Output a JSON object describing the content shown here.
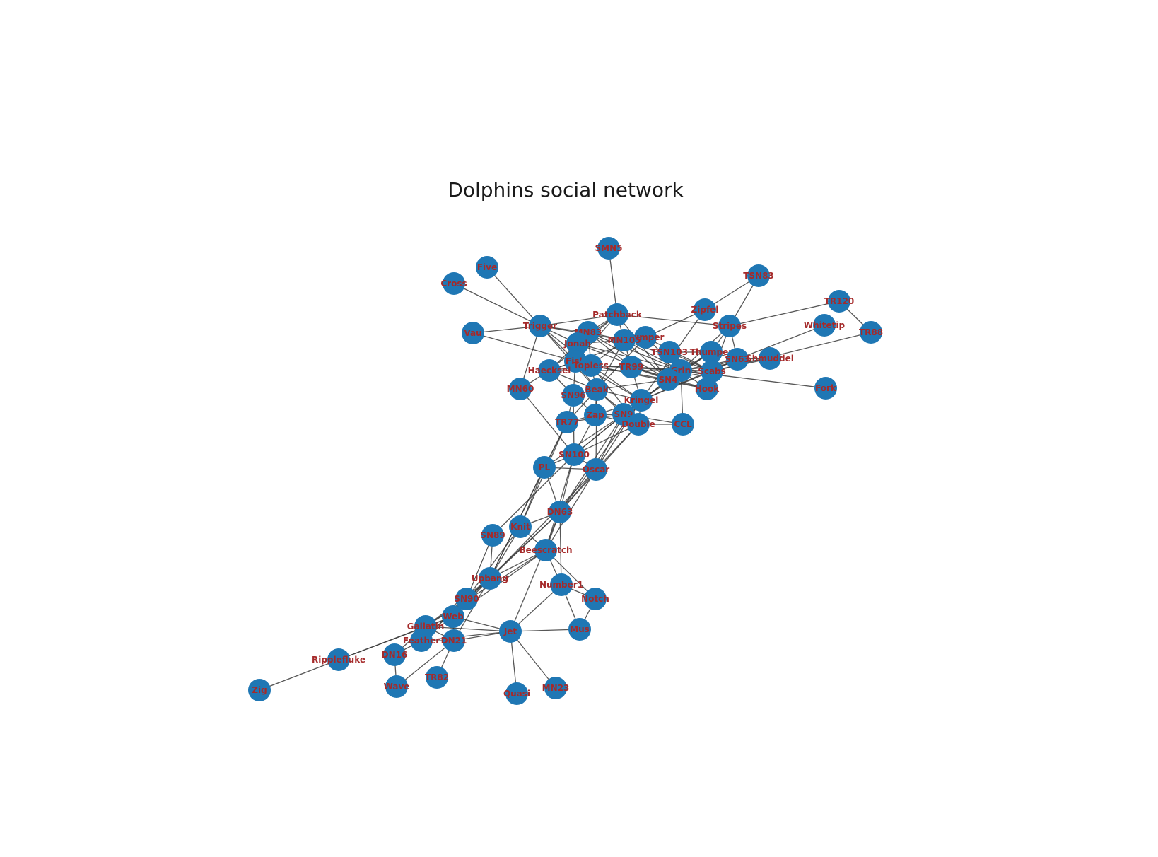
{
  "title": "Dolphins social network",
  "colors": {
    "node": "#1f77b4",
    "edge": "#3a3a3a",
    "label": "#a52a2a",
    "title": "#1a1a1a"
  },
  "nodes": [
    "SMN5",
    "Five",
    "Cross",
    "TSN83",
    "Patchback",
    "Zipfel",
    "TR120",
    "Trigger",
    "Vau",
    "Stripes",
    "Whitetip",
    "TR88",
    "MN83",
    "Bumper",
    "MN105",
    "Jonah",
    "TSN103",
    "Thumper",
    "SN63",
    "Shmuddel",
    "Fish",
    "Topless",
    "TR99",
    "Grin",
    "Scabs",
    "Haecksel",
    "SN4",
    "Hook",
    "MN60",
    "SN96",
    "Beak",
    "Fork",
    "Kringel",
    "Zap",
    "SN9",
    "TR77",
    "Double",
    "CCL",
    "SN100",
    "PL",
    "Oscar",
    "DN63",
    "Knit",
    "SN89",
    "Beescratch",
    "Upbang",
    "Number1",
    "Notch",
    "SN90",
    "Web",
    "Gallatin",
    "Jet",
    "Mus",
    "Feather",
    "DN21",
    "Ripplefluke",
    "DN16",
    "TR82",
    "Zig",
    "Wave",
    "Quasi",
    "MN23"
  ],
  "edges": [
    [
      "SMN5",
      "Patchback"
    ],
    [
      "Five",
      "Trigger"
    ],
    [
      "Cross",
      "Trigger"
    ],
    [
      "Vau",
      "Trigger"
    ],
    [
      "Vau",
      "Topless"
    ],
    [
      "Trigger",
      "MN83"
    ],
    [
      "Trigger",
      "Jonah"
    ],
    [
      "Trigger",
      "MN105"
    ],
    [
      "Trigger",
      "Fish"
    ],
    [
      "Trigger",
      "Topless"
    ],
    [
      "Trigger",
      "Beak"
    ],
    [
      "Trigger",
      "MN60"
    ],
    [
      "Trigger",
      "Patchback"
    ],
    [
      "Patchback",
      "MN83"
    ],
    [
      "Patchback",
      "Jonah"
    ],
    [
      "Patchback",
      "Haecksel"
    ],
    [
      "Patchback",
      "Fish"
    ],
    [
      "Patchback",
      "Stripes"
    ],
    [
      "Patchback",
      "TR99"
    ],
    [
      "Patchback",
      "SN4"
    ],
    [
      "Zipfel",
      "TSN83"
    ],
    [
      "Zipfel",
      "Bumper"
    ],
    [
      "Zipfel",
      "Kringel"
    ],
    [
      "TSN83",
      "Stripes"
    ],
    [
      "TR120",
      "TR88"
    ],
    [
      "TR120",
      "Stripes"
    ],
    [
      "Whitetip",
      "SN63"
    ],
    [
      "TR88",
      "Scabs"
    ],
    [
      "Stripes",
      "Thumper"
    ],
    [
      "Stripes",
      "SN63"
    ],
    [
      "Stripes",
      "Grin"
    ],
    [
      "Stripes",
      "Hook"
    ],
    [
      "MN83",
      "Jonah"
    ],
    [
      "MN83",
      "MN105"
    ],
    [
      "MN83",
      "TR99"
    ],
    [
      "MN83",
      "SN4"
    ],
    [
      "MN83",
      "Topless"
    ],
    [
      "MN83",
      "Grin"
    ],
    [
      "Jonah",
      "MN105"
    ],
    [
      "Jonah",
      "Fish"
    ],
    [
      "Jonah",
      "Topless"
    ],
    [
      "Jonah",
      "Haecksel"
    ],
    [
      "Jonah",
      "SN4"
    ],
    [
      "Jonah",
      "Grin"
    ],
    [
      "MN105",
      "Bumper"
    ],
    [
      "MN105",
      "Topless"
    ],
    [
      "MN105",
      "SN4"
    ],
    [
      "MN105",
      "Grin"
    ],
    [
      "MN105",
      "Scabs"
    ],
    [
      "MN105",
      "Beak"
    ],
    [
      "Bumper",
      "Haecksel"
    ],
    [
      "Bumper",
      "Grin"
    ],
    [
      "Bumper",
      "Scabs"
    ],
    [
      "Bumper",
      "Beak"
    ],
    [
      "Fish",
      "Topless"
    ],
    [
      "Fish",
      "Haecksel"
    ],
    [
      "Fish",
      "SN96"
    ],
    [
      "Fish",
      "Beak"
    ],
    [
      "Fish",
      "Kringel"
    ],
    [
      "Topless",
      "Haecksel"
    ],
    [
      "Topless",
      "Beak"
    ],
    [
      "Topless",
      "SN4"
    ],
    [
      "Topless",
      "Grin"
    ],
    [
      "Topless",
      "Kringel"
    ],
    [
      "Topless",
      "Hook"
    ],
    [
      "Topless",
      "TR99"
    ],
    [
      "Topless",
      "Double"
    ],
    [
      "Haecksel",
      "SN96"
    ],
    [
      "Haecksel",
      "Beak"
    ],
    [
      "Haecksel",
      "MN60"
    ],
    [
      "Haecksel",
      "Grin"
    ],
    [
      "TR99",
      "Grin"
    ],
    [
      "TR99",
      "SN4"
    ],
    [
      "TR99",
      "Scabs"
    ],
    [
      "TR99",
      "Hook"
    ],
    [
      "TR99",
      "Kringel"
    ],
    [
      "Grin",
      "SN4"
    ],
    [
      "Grin",
      "Scabs"
    ],
    [
      "Grin",
      "Hook"
    ],
    [
      "Grin",
      "TSN103"
    ],
    [
      "Grin",
      "Thumper"
    ],
    [
      "Grin",
      "SN63"
    ],
    [
      "Grin",
      "Shmuddel"
    ],
    [
      "Grin",
      "Kringel"
    ],
    [
      "Grin",
      "CCL"
    ],
    [
      "Grin",
      "Fork"
    ],
    [
      "TSN103",
      "Thumper"
    ],
    [
      "TSN103",
      "SN4"
    ],
    [
      "TSN103",
      "Scabs"
    ],
    [
      "Thumper",
      "SN63"
    ],
    [
      "Thumper",
      "Scabs"
    ],
    [
      "Thumper",
      "SN4"
    ],
    [
      "Thumper",
      "Kringel"
    ],
    [
      "SN63",
      "Scabs"
    ],
    [
      "SN63",
      "Shmuddel"
    ],
    [
      "SN63",
      "SN4"
    ],
    [
      "SN63",
      "Kringel"
    ],
    [
      "Scabs",
      "SN4"
    ],
    [
      "Scabs",
      "Hook"
    ],
    [
      "Scabs",
      "Kringel"
    ],
    [
      "Scabs",
      "Shmuddel"
    ],
    [
      "SN4",
      "Kringel"
    ],
    [
      "SN4",
      "Hook"
    ],
    [
      "SN4",
      "SN9"
    ],
    [
      "SN4",
      "Beak"
    ],
    [
      "Beak",
      "SN96"
    ],
    [
      "Beak",
      "Zap"
    ],
    [
      "Beak",
      "SN9"
    ],
    [
      "Beak",
      "Kringel"
    ],
    [
      "Beak",
      "Double"
    ],
    [
      "Beak",
      "TR77"
    ],
    [
      "Beak",
      "Oscar"
    ],
    [
      "SN96",
      "TR77"
    ],
    [
      "SN96",
      "SN100"
    ],
    [
      "SN96",
      "Zap"
    ],
    [
      "Kringel",
      "SN9"
    ],
    [
      "Kringel",
      "Zap"
    ],
    [
      "Kringel",
      "Double"
    ],
    [
      "Kringel",
      "Oscar"
    ],
    [
      "Kringel",
      "SN100"
    ],
    [
      "Kringel",
      "DN63"
    ],
    [
      "Zap",
      "SN9"
    ],
    [
      "Zap",
      "Double"
    ],
    [
      "Zap",
      "SN100"
    ],
    [
      "Zap",
      "TR77"
    ],
    [
      "SN9",
      "Double"
    ],
    [
      "SN9",
      "CCL"
    ],
    [
      "SN9",
      "TR77"
    ],
    [
      "SN9",
      "SN100"
    ],
    [
      "SN9",
      "Oscar"
    ],
    [
      "SN9",
      "DN63"
    ],
    [
      "SN9",
      "PL"
    ],
    [
      "Double",
      "CCL"
    ],
    [
      "Double",
      "Oscar"
    ],
    [
      "Double",
      "DN63"
    ],
    [
      "Double",
      "SN100"
    ],
    [
      "MN60",
      "SN100"
    ],
    [
      "TR77",
      "PL"
    ],
    [
      "TR77",
      "Knit"
    ],
    [
      "TR77",
      "Upbang"
    ],
    [
      "SN100",
      "PL"
    ],
    [
      "SN100",
      "Oscar"
    ],
    [
      "SN100",
      "DN63"
    ],
    [
      "SN100",
      "Beescratch"
    ],
    [
      "SN100",
      "SN89"
    ],
    [
      "PL",
      "Oscar"
    ],
    [
      "PL",
      "DN63"
    ],
    [
      "PL",
      "Knit"
    ],
    [
      "PL",
      "Upbang"
    ],
    [
      "Oscar",
      "DN63"
    ],
    [
      "Oscar",
      "Beescratch"
    ],
    [
      "Oscar",
      "Upbang"
    ],
    [
      "DN63",
      "Knit"
    ],
    [
      "DN63",
      "Beescratch"
    ],
    [
      "DN63",
      "Upbang"
    ],
    [
      "DN63",
      "Number1"
    ],
    [
      "DN63",
      "SN90"
    ],
    [
      "DN63",
      "Jet"
    ],
    [
      "Knit",
      "Beescratch"
    ],
    [
      "Knit",
      "Upbang"
    ],
    [
      "Knit",
      "Web"
    ],
    [
      "SN89",
      "Upbang"
    ],
    [
      "SN89",
      "SN90"
    ],
    [
      "Beescratch",
      "Upbang"
    ],
    [
      "Beescratch",
      "Number1"
    ],
    [
      "Beescratch",
      "Notch"
    ],
    [
      "Beescratch",
      "Web"
    ],
    [
      "Beescratch",
      "Gallatin"
    ],
    [
      "Upbang",
      "SN90"
    ],
    [
      "Upbang",
      "Web"
    ],
    [
      "Upbang",
      "Gallatin"
    ],
    [
      "Upbang",
      "Feather"
    ],
    [
      "Upbang",
      "DN21"
    ],
    [
      "Number1",
      "Notch"
    ],
    [
      "Number1",
      "Mus"
    ],
    [
      "Number1",
      "Jet"
    ],
    [
      "Notch",
      "Mus"
    ],
    [
      "SN90",
      "Web"
    ],
    [
      "SN90",
      "Gallatin"
    ],
    [
      "SN90",
      "Feather"
    ],
    [
      "Web",
      "Gallatin"
    ],
    [
      "Web",
      "Feather"
    ],
    [
      "Web",
      "DN21"
    ],
    [
      "Web",
      "Jet"
    ],
    [
      "Gallatin",
      "Feather"
    ],
    [
      "Gallatin",
      "DN21"
    ],
    [
      "Gallatin",
      "Ripplefluke"
    ],
    [
      "Gallatin",
      "DN16"
    ],
    [
      "Gallatin",
      "Jet"
    ],
    [
      "Feather",
      "DN21"
    ],
    [
      "Feather",
      "DN16"
    ],
    [
      "Feather",
      "Jet"
    ],
    [
      "DN21",
      "Jet"
    ],
    [
      "DN21",
      "Wave"
    ],
    [
      "DN21",
      "TR82"
    ],
    [
      "Jet",
      "Mus"
    ],
    [
      "Jet",
      "Quasi"
    ],
    [
      "Jet",
      "MN23"
    ],
    [
      "Ripplefluke",
      "Zig"
    ],
    [
      "Ripplefluke",
      "Web"
    ],
    [
      "DN16",
      "Wave"
    ]
  ]
}
